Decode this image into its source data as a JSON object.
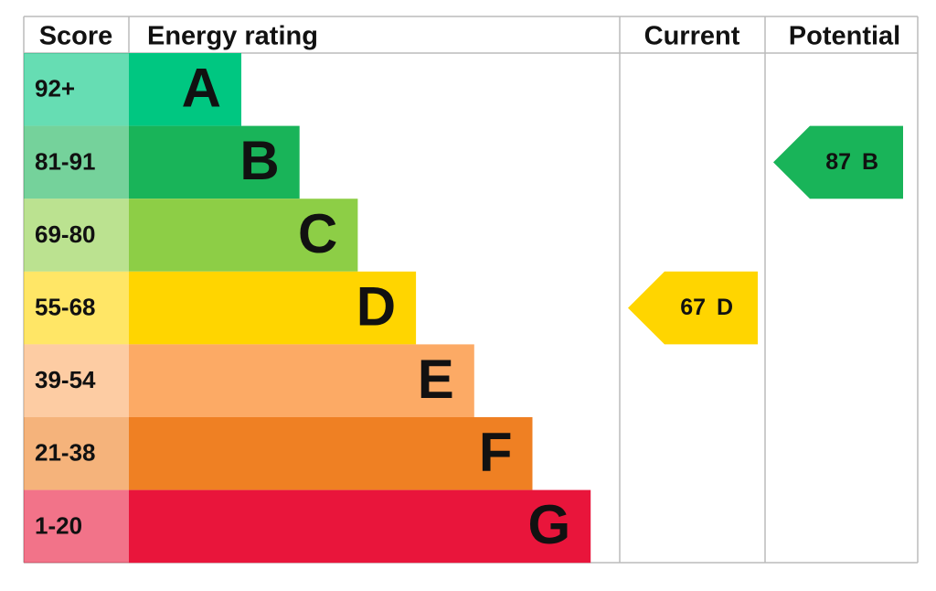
{
  "header": {
    "score": "Score",
    "rating": "Energy rating",
    "current": "Current",
    "potential": "Potential"
  },
  "rows": [
    {
      "range": "92+",
      "band": "A",
      "color": "#00c781"
    },
    {
      "range": "81-91",
      "band": "B",
      "color": "#19b459"
    },
    {
      "range": "69-80",
      "band": "C",
      "color": "#8dce46"
    },
    {
      "range": "55-68",
      "band": "D",
      "color": "#ffd500"
    },
    {
      "range": "39-54",
      "band": "E",
      "color": "#fcaa65"
    },
    {
      "range": "21-38",
      "band": "F",
      "color": "#ef8023"
    },
    {
      "range": "1-20",
      "band": "G",
      "color": "#e9153b"
    }
  ],
  "current": {
    "score": 67,
    "band": "D"
  },
  "potential": {
    "score": 87,
    "band": "B"
  }
}
